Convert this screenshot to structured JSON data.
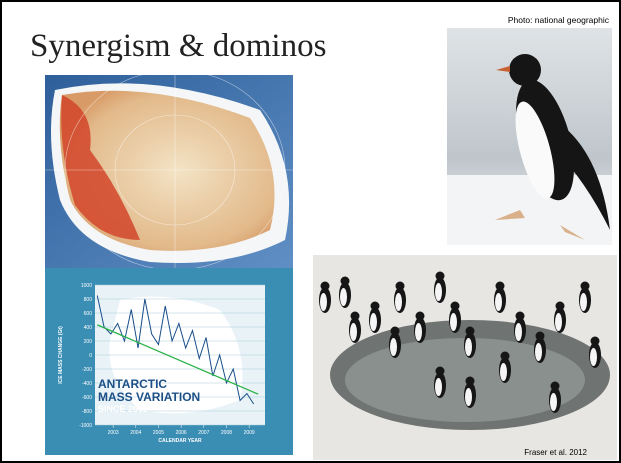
{
  "title": "Synergism & dominos",
  "photo_credit": "Photo: national geographic",
  "citation": "Fraser et al. 2012",
  "inset_chart": {
    "type": "line",
    "title_lines": [
      "ANTARCTIC",
      "MASS VARIATION",
      "SINCE 2002"
    ],
    "xlabel": "CALENDAR YEAR",
    "ylabel": "ICE MASS CHANGE (Gt)",
    "x": [
      2002.3,
      2002.6,
      2002.9,
      2003.2,
      2003.5,
      2003.8,
      2004.1,
      2004.4,
      2004.7,
      2005.0,
      2005.3,
      2005.6,
      2005.9,
      2006.2,
      2006.5,
      2006.8,
      2007.1,
      2007.4,
      2007.7,
      2008.0,
      2008.3,
      2008.6,
      2008.9,
      2009.2
    ],
    "values": [
      850,
      400,
      300,
      450,
      200,
      650,
      100,
      800,
      300,
      150,
      700,
      200,
      450,
      100,
      350,
      -50,
      250,
      -300,
      0,
      -400,
      -200,
      -650,
      -550,
      -700
    ],
    "color": "#1a4f8a",
    "trend": {
      "x": [
        2002.3,
        2009.4
      ],
      "values": [
        430,
        -560
      ],
      "color": "#2db34a"
    },
    "xlim": [
      2002.2,
      2009.7
    ],
    "xticks": [
      2003,
      2004,
      2005,
      2006,
      2007,
      2008,
      2009
    ],
    "ylim": [
      -1000,
      1000
    ],
    "yticks": [
      1000,
      800,
      600,
      400,
      200,
      0,
      -200,
      -400,
      -600,
      -800,
      -1000
    ]
  }
}
